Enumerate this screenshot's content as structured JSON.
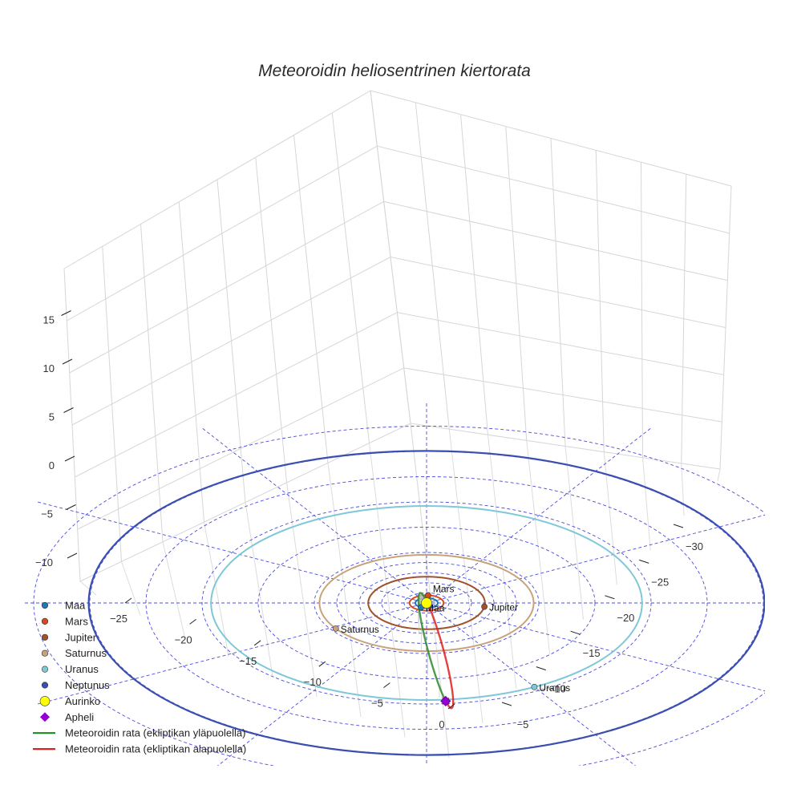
{
  "chart_data": {
    "type": "line",
    "title": "Meteoroidin heliosentrinen kiertorata",
    "xlabel": "",
    "ylabel": "",
    "zlabel": "",
    "projection": "3d",
    "grid": true,
    "legend_position": "lower-left",
    "axes": {
      "x_ticks": [
        -25,
        -20,
        -15,
        -10,
        -5,
        0
      ],
      "y_ticks": [
        -5,
        -10,
        -15,
        -20,
        -25,
        -30
      ],
      "z_ticks": [
        -10,
        -5,
        0,
        5,
        10,
        15
      ],
      "x_range": [
        -30,
        5
      ],
      "y_range": [
        -33,
        3
      ],
      "z_range": [
        -13,
        20
      ]
    },
    "planets": [
      {
        "name": "Maa",
        "radius_au": 1.0,
        "angle_deg": 240,
        "color": "#1f77b4",
        "label": "Maa",
        "orbit_visible": true
      },
      {
        "name": "Mars",
        "radius_au": 1.52,
        "angle_deg": 85,
        "color": "#d44b1e",
        "label": "Mars",
        "orbit_visible": true
      },
      {
        "name": "Jupiter",
        "radius_au": 5.2,
        "angle_deg": -8,
        "color": "#a0522d",
        "label": "Jupiter",
        "orbit_visible": true
      },
      {
        "name": "Saturnus",
        "radius_au": 9.54,
        "angle_deg": 212,
        "color": "#c8a27a",
        "label": "Saturnus",
        "orbit_visible": true
      },
      {
        "name": "Uranus",
        "radius_au": 19.2,
        "angle_deg": -60,
        "color": "#7ec8d8",
        "label": "Uranus",
        "orbit_visible": true
      },
      {
        "name": "Neptunus",
        "radius_au": 30.1,
        "angle_deg": 0,
        "color": "#3a4fb0",
        "label": "",
        "orbit_visible": true
      }
    ],
    "sun": {
      "name": "Aurinko",
      "color": "#ffff00"
    },
    "reference_circles_au": [
      2,
      4,
      6,
      8,
      10,
      15,
      20,
      25,
      30,
      35
    ],
    "meteoroid_orbit": {
      "perihelion_au": 0.6,
      "aphelion_au": 19.5,
      "inclination_deg": 68,
      "node_angle_deg": 95,
      "colors": {
        "above": "#2e8b2e",
        "below": "#e02020"
      }
    },
    "apheli": {
      "name": "Apheli",
      "color": "#9400d3"
    },
    "series": [
      {
        "name": "Maa",
        "marker": "circle",
        "color": "#1f77b4"
      },
      {
        "name": "Mars",
        "marker": "circle",
        "color": "#d44b1e"
      },
      {
        "name": "Jupiter",
        "marker": "circle",
        "color": "#a0522d"
      },
      {
        "name": "Saturnus",
        "marker": "circle",
        "color": "#c8a27a"
      },
      {
        "name": "Uranus",
        "marker": "circle",
        "color": "#7ec8d8"
      },
      {
        "name": "Neptunus",
        "marker": "circle",
        "color": "#3a4fb0"
      },
      {
        "name": "Aurinko",
        "marker": "circle-large",
        "color": "#ffff00"
      },
      {
        "name": "Apheli",
        "marker": "diamond",
        "color": "#9400d3"
      },
      {
        "name": "Meteoroidin rata (ekliptikan yläpuolella)",
        "marker": "line",
        "color": "#1a8a1a"
      },
      {
        "name": "Meteoroidin rata (ekliptikan alapuolella)",
        "marker": "line",
        "color": "#e02020"
      }
    ]
  }
}
